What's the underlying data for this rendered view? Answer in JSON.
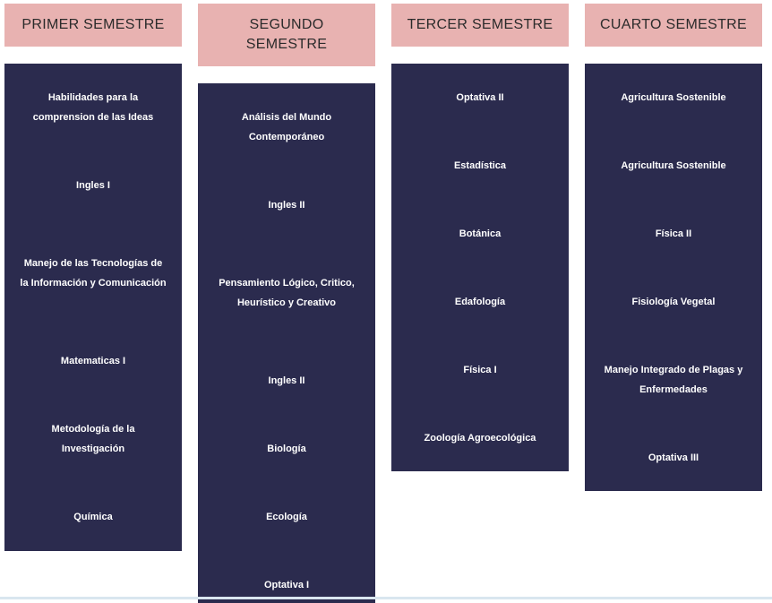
{
  "semesters": [
    {
      "title": "PRIMER SEMESTRE",
      "courses": [
        "Habilidades para la comprension de las Ideas",
        "Ingles I",
        "Manejo de las Tecnologías de la Información y Comunicación",
        "Matematicas I",
        "Metodología de la Investigación",
        "Química"
      ]
    },
    {
      "title": "SEGUNDO SEMESTRE",
      "courses": [
        "Análisis del Mundo Contemporáneo",
        "Ingles II",
        "Pensamiento Lógico, Critico, Heurístico y Creativo",
        "Ingles II",
        "Biología",
        "Ecología",
        "Optativa I"
      ]
    },
    {
      "title": "TERCER SEMESTRE",
      "courses": [
        "Optativa II",
        "Estadística",
        "Botánica",
        "Edafología",
        "Física I",
        "Zoología Agroecológica"
      ]
    },
    {
      "title": "CUARTO SEMESTRE",
      "courses": [
        "Agricultura Sostenible",
        "Agricultura Sostenible",
        "Física II",
        "Fisiología Vegetal",
        "Manejo Integrado de Plagas y Enfermedades",
        "Optativa III"
      ]
    }
  ]
}
